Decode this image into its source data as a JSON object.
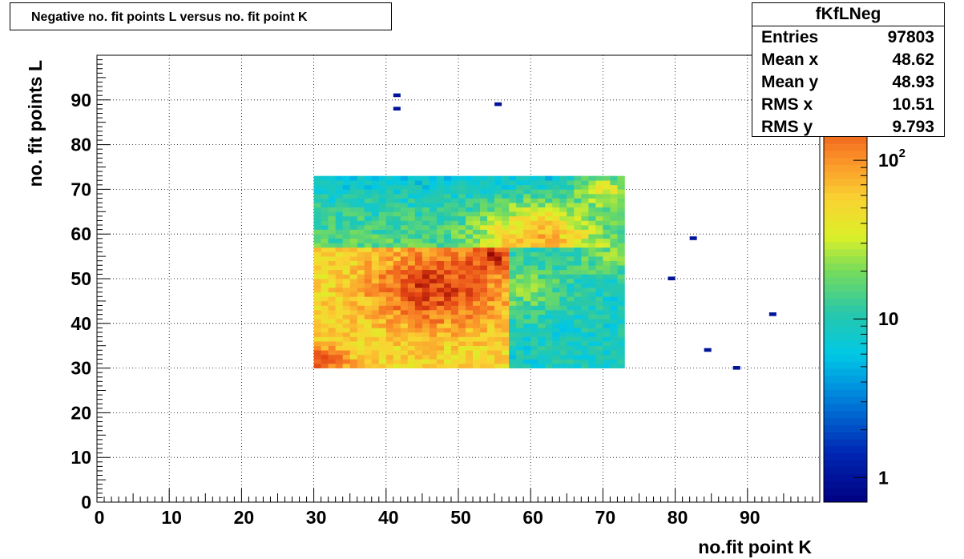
{
  "title": "Negative no. fit points L versus no. fit point K",
  "stats": {
    "name": "fKfLNeg",
    "rows": [
      {
        "label": "Entries",
        "value": "97803"
      },
      {
        "label": "Mean x",
        "value": "48.62"
      },
      {
        "label": "Mean y",
        "value": "48.93"
      },
      {
        "label": "RMS x",
        "value": "10.51"
      },
      {
        "label": "RMS y",
        "value": "9.793"
      }
    ]
  },
  "chart_data": {
    "type": "heatmap",
    "xlabel": "no.fit point K",
    "ylabel": "no. fit points  L",
    "xlim": [
      0,
      100
    ],
    "ylim": [
      0,
      100
    ],
    "x_ticks": [
      "0",
      "10",
      "20",
      "30",
      "40",
      "50",
      "60",
      "70",
      "80",
      "90"
    ],
    "y_ticks": [
      "0",
      "10",
      "20",
      "30",
      "40",
      "50",
      "60",
      "70",
      "80",
      "90"
    ],
    "grid": true,
    "colorbar": {
      "scale": "log",
      "min": 0.7,
      "max": 320,
      "tick_labels": [
        {
          "value": 1,
          "text": "1"
        },
        {
          "value": 10,
          "text": "10"
        },
        {
          "value": 100,
          "text": "10",
          "sup": "2"
        }
      ]
    },
    "regions": [
      {
        "x": [
          30,
          57
        ],
        "y": [
          30,
          57
        ],
        "typical_count": 120,
        "peak": {
          "x": 47,
          "y": 48,
          "count": 260
        }
      },
      {
        "x": [
          57,
          73
        ],
        "y": [
          30,
          57
        ],
        "typical_count": 15
      },
      {
        "x": [
          30,
          73
        ],
        "y": [
          57,
          73
        ],
        "typical_count": 25,
        "peak": {
          "x": 61,
          "y": 60,
          "count": 80
        }
      }
    ],
    "isolated_bins": [
      {
        "x": 41,
        "y": 91,
        "count": 1
      },
      {
        "x": 41,
        "y": 88,
        "count": 1
      },
      {
        "x": 55,
        "y": 89,
        "count": 1
      },
      {
        "x": 82,
        "y": 59,
        "count": 1
      },
      {
        "x": 79,
        "y": 50,
        "count": 1
      },
      {
        "x": 93,
        "y": 42,
        "count": 1
      },
      {
        "x": 84,
        "y": 34,
        "count": 1
      },
      {
        "x": 88,
        "y": 30,
        "count": 1
      }
    ]
  }
}
